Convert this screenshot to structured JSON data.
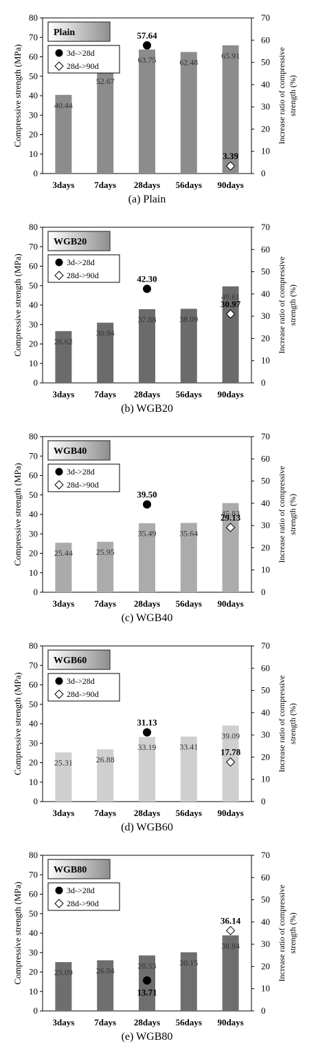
{
  "chart_data": [
    {
      "type": "bar",
      "panel_label": "Plain",
      "caption": "(a) Plain",
      "categories": [
        "3days",
        "7days",
        "28days",
        "56days",
        "90days"
      ],
      "values": [
        40.44,
        52.67,
        63.75,
        62.48,
        65.91
      ],
      "value_labels": [
        "40.44",
        "52.67",
        "63.75",
        "62.48",
        "65.91"
      ],
      "bar_color": "#8c8c8c",
      "ylabel": "Compressive  strength  (MPa)",
      "ylabel2": [
        "Increase ratio of compressive",
        "strength  (%)"
      ],
      "ylim": [
        0,
        80
      ],
      "y_ticks": [
        "0",
        "10",
        "20",
        "30",
        "40",
        "50",
        "60",
        "70",
        "80"
      ],
      "ylim2": [
        0,
        70
      ],
      "y2_ticks": [
        "0",
        "10",
        "20",
        "30",
        "40",
        "50",
        "60",
        "70"
      ],
      "legend": [
        "3d->28d",
        "28d->90d"
      ],
      "ratio_3d_28d": {
        "category": "28days",
        "value": 57.64,
        "label": "57.64"
      },
      "ratio_28d_90d": {
        "category": "90days",
        "value": 3.39,
        "label": "3.39"
      }
    },
    {
      "type": "bar",
      "panel_label": "WGB20",
      "caption": "(b) WGB20",
      "categories": [
        "3days",
        "7days",
        "28days",
        "56days",
        "90days"
      ],
      "values": [
        26.62,
        30.94,
        37.88,
        38.09,
        49.61
      ],
      "value_labels": [
        "26.62",
        "30.94",
        "37.88",
        "38.09",
        "49.61"
      ],
      "bar_color": "#6b6b6b",
      "ylabel": "Compressive  strength  (MPa)",
      "ylabel2": [
        "Increase ratio of compressive",
        "strength  (%)"
      ],
      "ylim": [
        0,
        80
      ],
      "y_ticks": [
        "0",
        "10",
        "20",
        "30",
        "40",
        "50",
        "60",
        "70",
        "80"
      ],
      "ylim2": [
        0,
        70
      ],
      "y2_ticks": [
        "0",
        "10",
        "20",
        "30",
        "40",
        "50",
        "60",
        "70"
      ],
      "legend": [
        "3d->28d",
        "28d->90d"
      ],
      "ratio_3d_28d": {
        "category": "28days",
        "value": 42.3,
        "label": "42.30"
      },
      "ratio_28d_90d": {
        "category": "90days",
        "value": 30.97,
        "label": "30.97"
      }
    },
    {
      "type": "bar",
      "panel_label": "WGB40",
      "caption": "(c) WGB40",
      "categories": [
        "3days",
        "7days",
        "28days",
        "56days",
        "90days"
      ],
      "values": [
        25.44,
        25.95,
        35.49,
        35.64,
        45.83
      ],
      "value_labels": [
        "25.44",
        "25.95",
        "35.49",
        "35.64",
        "45.83"
      ],
      "bar_color": "#ababab",
      "ylabel": "Compressive  strength  (MPa)",
      "ylabel2": [
        "Increase ratio of compressive",
        "strength  (%)"
      ],
      "ylim": [
        0,
        80
      ],
      "y_ticks": [
        "0",
        "10",
        "20",
        "30",
        "40",
        "50",
        "60",
        "70",
        "80"
      ],
      "ylim2": [
        0,
        70
      ],
      "y2_ticks": [
        "0",
        "10",
        "20",
        "30",
        "40",
        "50",
        "60",
        "70"
      ],
      "legend": [
        "3d->28d",
        "28d->90d"
      ],
      "ratio_3d_28d": {
        "category": "28days",
        "value": 39.5,
        "label": "39.50"
      },
      "ratio_28d_90d": {
        "category": "90days",
        "value": 29.13,
        "label": "29.13"
      }
    },
    {
      "type": "bar",
      "panel_label": "WGB60",
      "caption": "(d) WGB60",
      "categories": [
        "3days",
        "7days",
        "28days",
        "56days",
        "90days"
      ],
      "values": [
        25.31,
        26.88,
        33.19,
        33.41,
        39.09
      ],
      "value_labels": [
        "25.31",
        "26.88",
        "33.19",
        "33.41",
        "39.09"
      ],
      "bar_color": "#cfcfcf",
      "ylabel": "Compressive  strength  (MPa)",
      "ylabel2": [
        "Increase ratio of compressive",
        "strength  (%)"
      ],
      "ylim": [
        0,
        80
      ],
      "y_ticks": [
        "0",
        "10",
        "20",
        "30",
        "40",
        "50",
        "60",
        "70",
        "80"
      ],
      "ylim2": [
        0,
        70
      ],
      "y2_ticks": [
        "0",
        "10",
        "20",
        "30",
        "40",
        "50",
        "60",
        "70"
      ],
      "legend": [
        "3d->28d",
        "28d->90d"
      ],
      "ratio_3d_28d": {
        "category": "28days",
        "value": 31.13,
        "label": "31.13"
      },
      "ratio_28d_90d": {
        "category": "90days",
        "value": 17.78,
        "label": "17.78"
      }
    },
    {
      "type": "bar",
      "panel_label": "WGB80",
      "caption": "(e) WGB80",
      "categories": [
        "3days",
        "7days",
        "28days",
        "56days",
        "90days"
      ],
      "values": [
        25.09,
        26.04,
        28.53,
        30.15,
        38.84
      ],
      "value_labels": [
        "25.09",
        "26.04",
        "28.53",
        "30.15",
        "38.84"
      ],
      "bar_color": "#6e6e6e",
      "ylabel": "Compressive  strength  (MPa)",
      "ylabel2": [
        "Increase ratio of compressive",
        "strength  (%)"
      ],
      "ylim": [
        0,
        80
      ],
      "y_ticks": [
        "0",
        "10",
        "20",
        "30",
        "40",
        "50",
        "60",
        "70",
        "80"
      ],
      "ylim2": [
        0,
        70
      ],
      "y2_ticks": [
        "0",
        "10",
        "20",
        "30",
        "40",
        "50",
        "60",
        "70"
      ],
      "legend": [
        "3d->28d",
        "28d->90d"
      ],
      "ratio_3d_28d": {
        "category": "28days",
        "value": 13.71,
        "label": "13.71"
      },
      "ratio_28d_90d": {
        "category": "90days",
        "value": 36.14,
        "label": "36.14"
      }
    }
  ]
}
